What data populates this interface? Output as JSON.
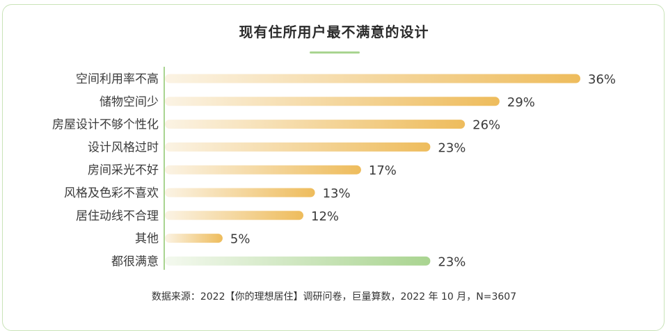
{
  "title": "现有住所用户最不满意的设计",
  "source": "数据来源：2022【你的理想居住】调研问卷，巨量算数，2022 年 10 月，N=3607",
  "colors": {
    "bar_start": "#fbf3e4",
    "bar_end": "#eebc5c",
    "bar_alt_start": "#f4f9ef",
    "bar_alt_end": "#a9d490",
    "axis": "#a9d490",
    "border": "#c9e3b8"
  },
  "chart_data": {
    "type": "bar",
    "orientation": "horizontal",
    "categories": [
      "空间利用率不高",
      "储物空间少",
      "房屋设计不够个性化",
      "设计风格过时",
      "房间采光不好",
      "风格及色彩不喜欢",
      "居住动线不合理",
      "其他",
      "都很满意"
    ],
    "values": [
      36,
      29,
      26,
      23,
      17,
      13,
      12,
      5,
      23
    ],
    "value_labels": [
      "36%",
      "29%",
      "26%",
      "23%",
      "17%",
      "13%",
      "12%",
      "5%",
      "23%"
    ],
    "unit": "%",
    "title": "现有住所用户最不满意的设计",
    "xlim": [
      0,
      36
    ],
    "highlight_last": true
  }
}
